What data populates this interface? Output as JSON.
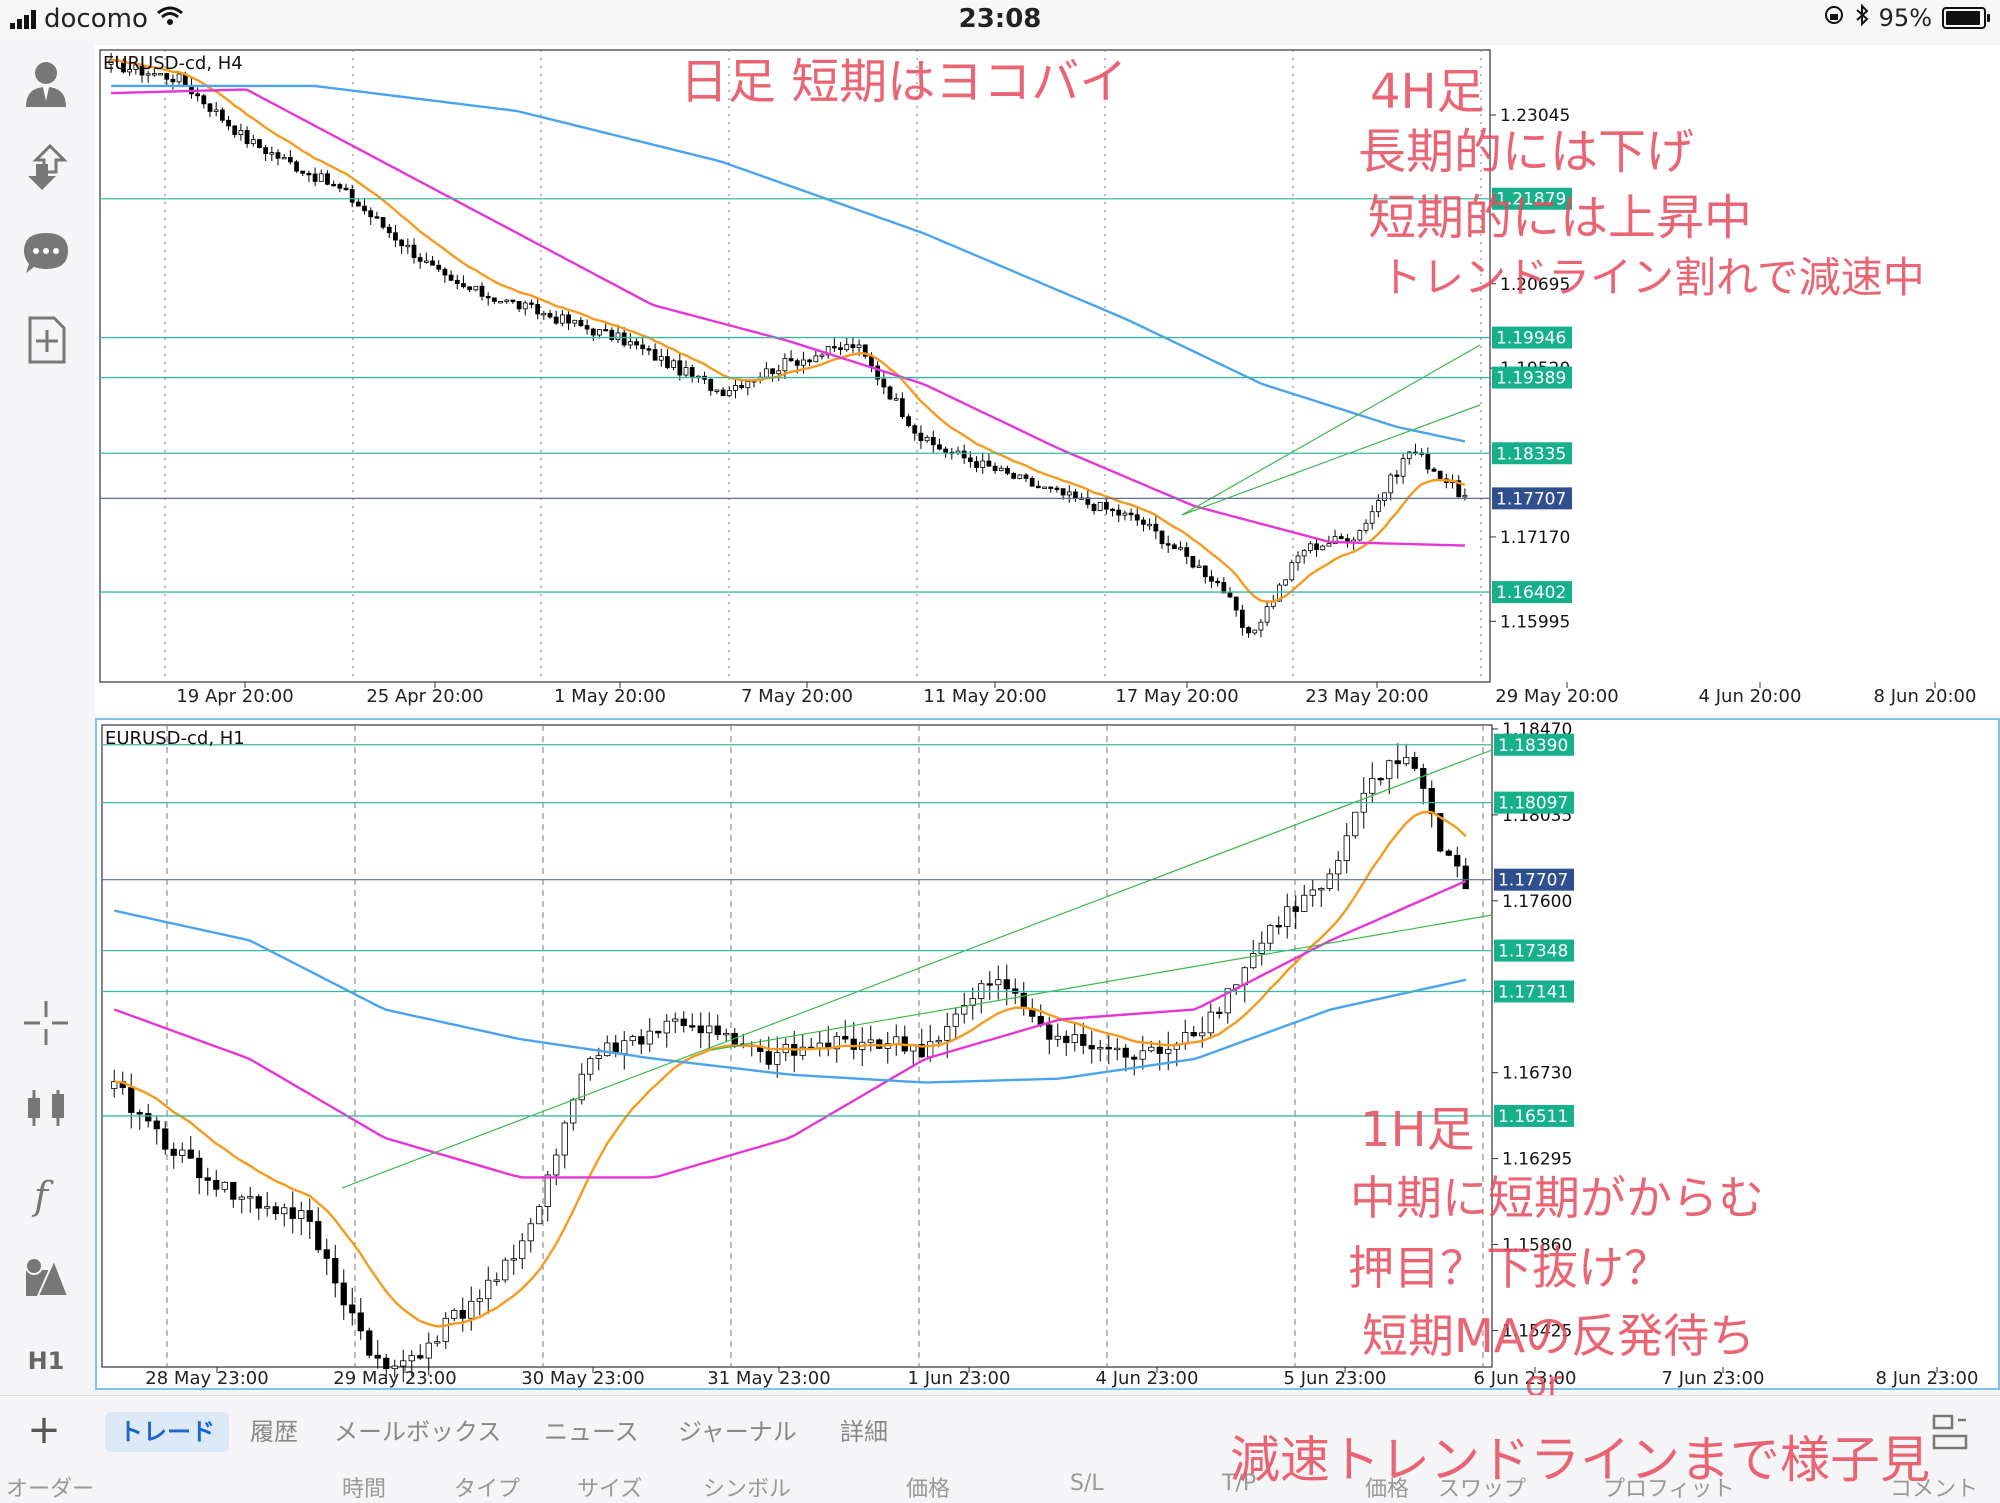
{
  "status_bar": {
    "carrier": "docomo",
    "time": "23:08",
    "battery": "95%",
    "battery_level": 0.95
  },
  "sidebar": {
    "timeframe": "H1"
  },
  "chart_h4": {
    "title": "EURUSD-cd, H4",
    "price_labels": [
      "1.23045",
      "1.20695",
      "1.19520",
      "1.17170",
      "1.15995"
    ],
    "level_lines": [
      {
        "value": "1.21879",
        "price": 1.21879
      },
      {
        "value": "1.19946",
        "price": 1.19946
      },
      {
        "value": "1.19389",
        "price": 1.19389
      },
      {
        "value": "1.18335",
        "price": 1.18335
      },
      {
        "value": "1.16402",
        "price": 1.16402
      }
    ],
    "current_price": "1.17707",
    "x_labels": [
      "19 Apr 20:00",
      "25 Apr 20:00",
      "1 May 20:00",
      "7 May 20:00",
      "11 May 20:00",
      "17 May 20:00",
      "23 May 20:00",
      "29 May 20:00",
      "4 Jun 20:00",
      "8 Jun 20:00"
    ]
  },
  "chart_h1": {
    "title": "EURUSD-cd, H1",
    "price_labels": [
      "1.18470",
      "1.18035",
      "1.17600",
      "1.16730",
      "1.16295",
      "1.15860",
      "1.15425"
    ],
    "level_lines": [
      {
        "value": "1.18390",
        "price": 1.1839
      },
      {
        "value": "1.18097",
        "price": 1.18097
      },
      {
        "value": "1.17348",
        "price": 1.17348
      },
      {
        "value": "1.17141",
        "price": 1.17141
      },
      {
        "value": "1.16511",
        "price": 1.16511
      }
    ],
    "current_price": "1.17707",
    "x_labels": [
      "28 May 23:00",
      "29 May 23:00",
      "30 May 23:00",
      "31 May 23:00",
      "1 Jun 23:00",
      "4 Jun 23:00",
      "5 Jun 23:00",
      "6 Jun 23:00",
      "7 Jun 23:00",
      "8 Jun 23:00"
    ]
  },
  "annotations": {
    "top_title": "日足 短期はヨコバイ",
    "h4_lines": [
      "4H足",
      "長期的には下げ",
      "短期的には上昇中",
      "トレンドライン割れで減速中"
    ],
    "h1_lines": [
      "1H足",
      "中期に短期がからむ",
      "押目？下抜け？",
      "短期MAの反発待ち",
      "or",
      "減速トレンドラインまで様子見"
    ]
  },
  "tabs": [
    "トレード",
    "履歴",
    "メールボックス",
    "ニュース",
    "ジャーナル",
    "詳細"
  ],
  "columns": [
    "オーダー",
    "時間",
    "タイプ",
    "サイズ",
    "シンボル",
    "価格",
    "S/L",
    "T/P",
    "価格",
    "スワップ",
    "プロフィット",
    "コメント"
  ],
  "colors": {
    "bull": "#ffffff",
    "bear": "#000000",
    "ma_short": "#f59a1e",
    "ma_mid": "#e535d6",
    "ma_long": "#4aa3ec",
    "level": "#3bb8a0",
    "level_label_bg": "#16b08a",
    "current_bg": "#2f4f8f",
    "trend": "#3cb84a",
    "annotation": "#e64b5b"
  }
}
